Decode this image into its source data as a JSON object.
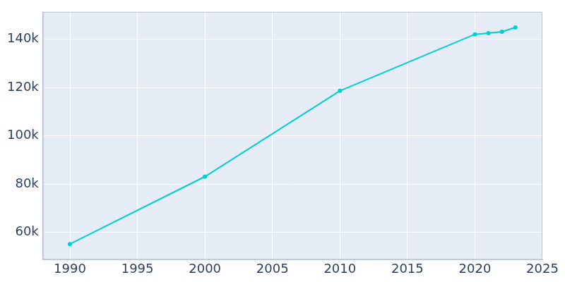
{
  "chart_data": {
    "type": "line",
    "x": [
      1990,
      2000,
      2010,
      2020,
      2021,
      2022,
      2023
    ],
    "values": [
      55200,
      83100,
      118600,
      142000,
      142500,
      143100,
      144800
    ],
    "color": "#00ced1",
    "marker": "circle",
    "xlim": [
      1988,
      2025
    ],
    "xticks": [
      1990,
      1995,
      2000,
      2005,
      2010,
      2015,
      2020,
      2025
    ],
    "ylim": [
      48700,
      151300
    ],
    "yticks": [
      {
        "value": 60000,
        "label": "60k"
      },
      {
        "value": 80000,
        "label": "80k"
      },
      {
        "value": 100000,
        "label": "100k"
      },
      {
        "value": 120000,
        "label": "120k"
      },
      {
        "value": 140000,
        "label": "140k"
      }
    ],
    "grid": true
  }
}
